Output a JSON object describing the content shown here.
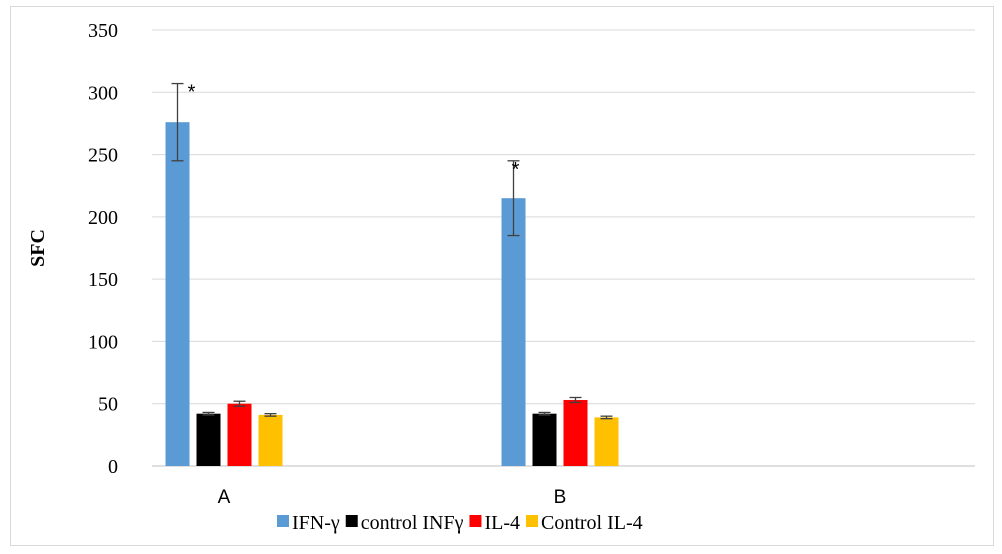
{
  "chart_data": {
    "type": "bar",
    "title": "",
    "xlabel": "",
    "ylabel": "SFC",
    "ylim": [
      0,
      350
    ],
    "yticks": [
      0,
      50,
      100,
      150,
      200,
      250,
      300,
      350
    ],
    "grid": true,
    "legend_position": "bottom",
    "categories": [
      "A",
      "B"
    ],
    "series": [
      {
        "name": "IFN-γ",
        "color": "#5b9bd5",
        "values": [
          276,
          215
        ],
        "errors": [
          31,
          30
        ],
        "annotations": [
          "*",
          "*"
        ]
      },
      {
        "name": "control INFγ",
        "color": "#000000",
        "values": [
          42,
          42
        ],
        "errors": [
          1,
          1
        ],
        "annotations": [
          "",
          ""
        ]
      },
      {
        "name": "IL-4",
        "color": "#ff0000",
        "values": [
          50,
          53
        ],
        "errors": [
          2,
          2
        ],
        "annotations": [
          "",
          ""
        ]
      },
      {
        "name": "Control IL-4",
        "color": "#ffc000",
        "values": [
          41,
          39
        ],
        "errors": [
          1,
          1
        ],
        "annotations": [
          "",
          ""
        ]
      }
    ]
  }
}
